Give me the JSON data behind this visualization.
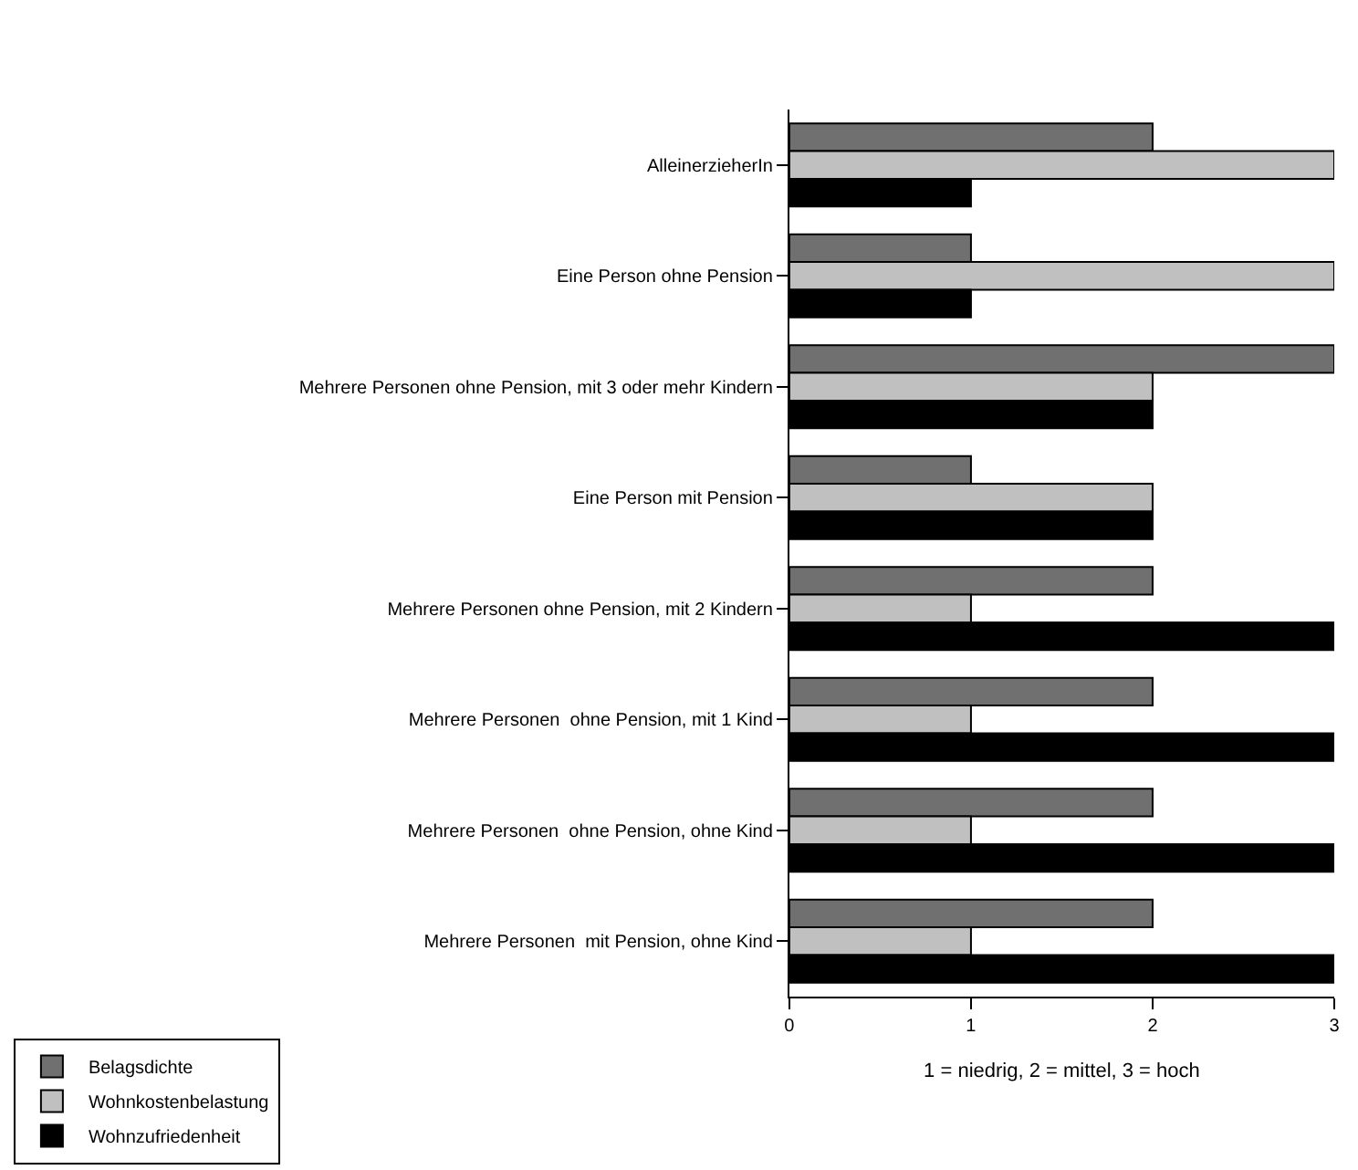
{
  "chart_data": {
    "type": "bar",
    "orientation": "horizontal",
    "xlabel": "1 = niedrig, 2 = mittel, 3 = hoch",
    "categories": [
      "AlleinerzieherIn",
      "Eine Person ohne Pension",
      "Mehrere Personen ohne Pension, mit 3 oder mehr Kindern",
      "Eine Person mit Pension",
      "Mehrere Personen ohne Pension, mit 2 Kindern",
      "Mehrere Personen  ohne Pension, mit 1 Kind",
      "Mehrere Personen  ohne Pension, ohne Kind",
      "Mehrere Personen  mit Pension, ohne Kind"
    ],
    "series": [
      {
        "name": "Belagsdichte",
        "color": "#707070",
        "values": [
          2,
          1,
          3,
          1,
          2,
          2,
          2,
          2
        ]
      },
      {
        "name": "Wohnkostenbelastung",
        "color": "#c0c0c0",
        "values": [
          3,
          3,
          2,
          2,
          1,
          1,
          1,
          1
        ]
      },
      {
        "name": "Wohnzufriedenheit",
        "color": "#000000",
        "values": [
          1,
          1,
          2,
          2,
          3,
          3,
          3,
          3
        ]
      }
    ],
    "xlim": [
      0,
      3
    ],
    "xticks": [
      0,
      1,
      2,
      3
    ],
    "legend": "bottom left"
  }
}
